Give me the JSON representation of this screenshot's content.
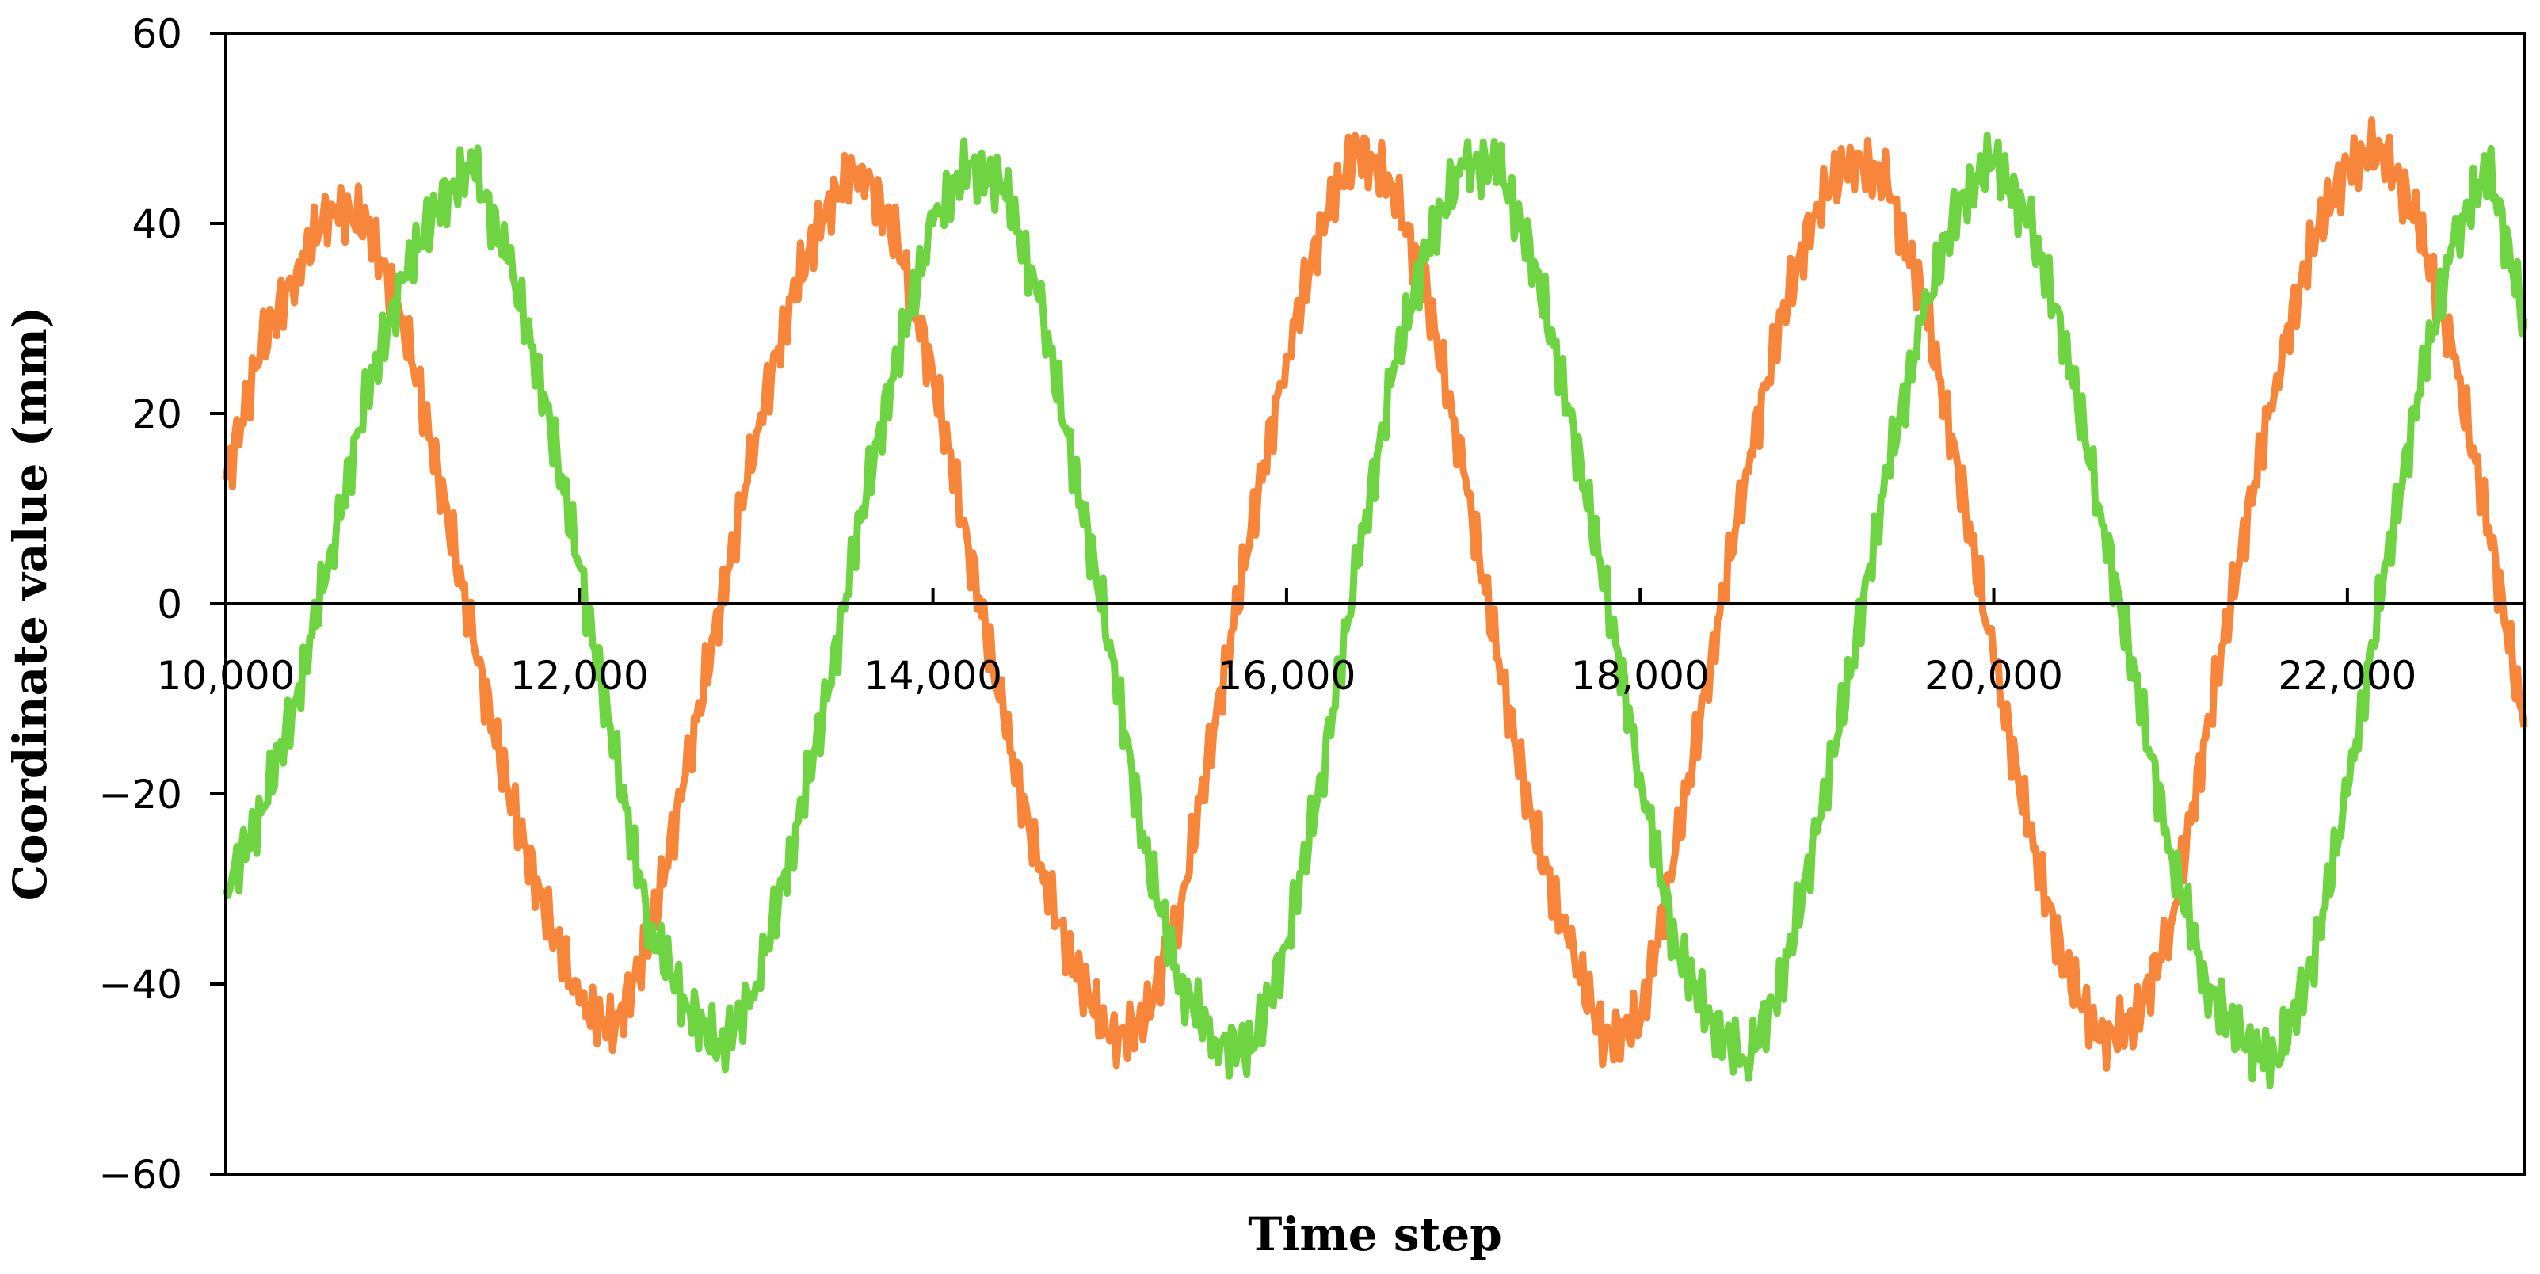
{
  "chart_data": {
    "type": "line",
    "title": "",
    "xlabel": "Time step",
    "ylabel": "Coordinate value (mm)",
    "xlim": [
      10000,
      23000
    ],
    "ylim": [
      -60,
      60
    ],
    "x_ticks": [
      10000,
      12000,
      14000,
      16000,
      18000,
      20000,
      22000
    ],
    "x_tick_labels": [
      "10,000",
      "12,000",
      "14,000",
      "16,000",
      "18,000",
      "20,000",
      "22,000"
    ],
    "y_ticks": [
      -60,
      -40,
      -20,
      0,
      20,
      40,
      60
    ],
    "y_tick_labels": [
      "−60",
      "−40",
      "−20",
      "0",
      "20",
      "40",
      "60"
    ],
    "grid": false,
    "legend": "none",
    "series": [
      {
        "color": "#F7853A",
        "x": [
          10000,
          10200,
          10400,
          10600,
          10800,
          11000,
          11200,
          11400,
          11600,
          11800,
          12000,
          12200,
          12400,
          12600,
          12800,
          13000,
          13200,
          13400,
          13600,
          13800,
          14000,
          14200,
          14400,
          14600,
          14800,
          15000,
          15200,
          15400,
          15600,
          15800,
          16000,
          16200,
          16400,
          16600,
          16800,
          17000,
          17200,
          17400,
          17600,
          17800,
          18000,
          18200,
          18400,
          18600,
          18800,
          19000,
          19200,
          19400,
          19600,
          19800,
          20000,
          20200,
          20400,
          20600,
          20800,
          21000,
          21200,
          21400,
          21600,
          21800,
          22000,
          22200,
          22400,
          22600,
          22800,
          23000
        ],
        "values": [
          13,
          27,
          35,
          42,
          40,
          30,
          14,
          -4,
          -20,
          -32,
          -42,
          -45,
          -35,
          -18,
          0,
          18,
          32,
          42,
          46,
          38,
          24,
          6,
          -12,
          -28,
          -38,
          -46,
          -44,
          -32,
          -12,
          8,
          26,
          40,
          48,
          44,
          32,
          14,
          -6,
          -24,
          -36,
          -46,
          -44,
          -26,
          -6,
          14,
          30,
          42,
          47,
          44,
          32,
          14,
          -6,
          -24,
          -38,
          -46,
          -44,
          -34,
          -14,
          6,
          24,
          38,
          46,
          48,
          40,
          26,
          8,
          -13
        ]
      },
      {
        "color": "#6FD441",
        "x": [
          10000,
          10200,
          10400,
          10600,
          10800,
          11000,
          11200,
          11400,
          11600,
          11800,
          12000,
          12200,
          12400,
          12600,
          12800,
          13000,
          13200,
          13400,
          13600,
          13800,
          14000,
          14200,
          14400,
          14600,
          14800,
          15000,
          15200,
          15400,
          15600,
          15800,
          16000,
          16200,
          16400,
          16600,
          16800,
          17000,
          17200,
          17400,
          17600,
          17800,
          18000,
          18200,
          18400,
          18600,
          18800,
          19000,
          19200,
          19400,
          19600,
          19800,
          20000,
          20200,
          20400,
          20600,
          20800,
          21000,
          21200,
          21400,
          21600,
          21800,
          22000,
          22200,
          22400,
          22600,
          22800,
          23000
        ],
        "values": [
          -30,
          -22,
          -10,
          6,
          22,
          34,
          42,
          46,
          36,
          22,
          4,
          -16,
          -34,
          -42,
          -47,
          -40,
          -26,
          -10,
          10,
          26,
          40,
          46,
          44,
          32,
          14,
          -4,
          -26,
          -40,
          -46,
          -47,
          -36,
          -18,
          4,
          24,
          38,
          46,
          46,
          36,
          20,
          2,
          -18,
          -36,
          -44,
          -48,
          -40,
          -24,
          -6,
          14,
          30,
          42,
          47,
          40,
          28,
          10,
          -8,
          -26,
          -40,
          -46,
          -48,
          -38,
          -20,
          2,
          22,
          38,
          46,
          30
        ]
      }
    ]
  }
}
